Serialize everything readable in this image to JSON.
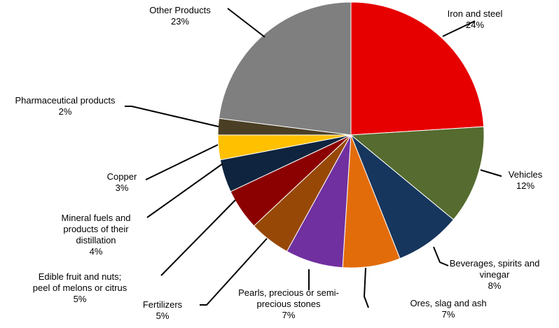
{
  "chart_data": {
    "type": "pie",
    "title": "",
    "unit": "%",
    "start_angle_deg": 0,
    "direction": "clockwise",
    "slices": [
      {
        "label": "Iron and steel",
        "value": 24,
        "value_label": "24%",
        "color": "#e60000"
      },
      {
        "label": "Vehicles",
        "value": 12,
        "value_label": "12%",
        "color": "#556b2f"
      },
      {
        "label": "Beverages, spirits and vinegar",
        "value": 8,
        "value_label": "8%",
        "color": "#17365d"
      },
      {
        "label": "Ores, slag and ash",
        "value": 7,
        "value_label": "7%",
        "color": "#e36c0a"
      },
      {
        "label": "Pearls, precious or semi-precious stones",
        "value": 7,
        "value_label": "7%",
        "color": "#7030a0"
      },
      {
        "label": "Fertilizers",
        "value": 5,
        "value_label": "5%",
        "color": "#974806"
      },
      {
        "label": "Edible fruit and nuts; peel of melons or citrus",
        "value": 5,
        "value_label": "5%",
        "color": "#8b0000"
      },
      {
        "label": "Mineral fuels and products of their distillation",
        "value": 4,
        "value_label": "4%",
        "color": "#0f243e"
      },
      {
        "label": "Copper",
        "value": 3,
        "value_label": "3%",
        "color": "#ffc000"
      },
      {
        "label": "Pharmaceutical products",
        "value": 2,
        "value_label": "2%",
        "color": "#4a3f25"
      },
      {
        "label": "Other Products",
        "value": 23,
        "value_label": "23%",
        "color": "#7f7f7f"
      }
    ],
    "label_lines": [
      [
        "Iron and steel",
        "24%"
      ],
      [
        "Vehicles",
        "12%"
      ],
      [
        "Beverages, spirits and",
        "vinegar",
        "8%"
      ],
      [
        "Ores, slag and ash",
        "7%"
      ],
      [
        "Pearls, precious or semi-",
        "precious stones",
        "7%"
      ],
      [
        "Fertilizers",
        "5%"
      ],
      [
        "Edible fruit and nuts;",
        "peel of melons or citrus",
        "5%"
      ],
      [
        "Mineral fuels and",
        "products of their",
        "distillation",
        "4%"
      ],
      [
        "Copper",
        "3%"
      ],
      [
        "Pharmaceutical products",
        "2%"
      ],
      [
        "Other Products",
        "23%"
      ]
    ]
  }
}
